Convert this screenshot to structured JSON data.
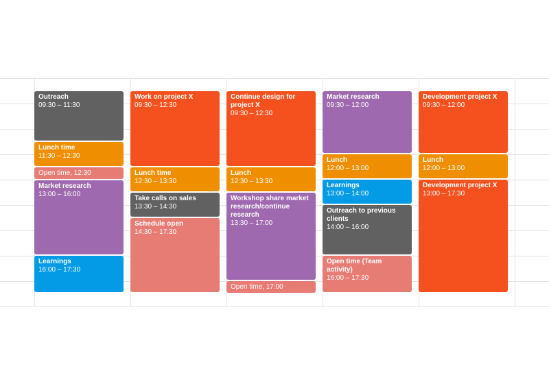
{
  "colors": {
    "gray": "#616161",
    "orange": "#f4511e",
    "amber": "#ef8f00",
    "salmon": "#e67c73",
    "purple": "#9e69af",
    "blue": "#039be5"
  },
  "days": [
    {
      "events": [
        {
          "title": "Outreach",
          "time": "09:30 – 11:30",
          "color": "gray"
        },
        {
          "title": "Lunch time",
          "time": "11:30 – 12:30",
          "color": "amber"
        },
        {
          "title": "Open time,",
          "time": "12:30",
          "color": "salmon"
        },
        {
          "title": "Market research",
          "time": "13:00 – 16:00",
          "color": "purple"
        },
        {
          "title": "Learnings",
          "time": "16:00 – 17:30",
          "color": "blue"
        }
      ]
    },
    {
      "events": [
        {
          "title": "Work on project X",
          "time": "09:30 – 12:30",
          "color": "orange"
        },
        {
          "title": "Lunch time",
          "time": "12:30 – 13:30",
          "color": "amber"
        },
        {
          "title": "Take calls on sales",
          "time": "13:30 – 14:30",
          "color": "gray"
        },
        {
          "title": "Schedule open",
          "time": "14:30 – 17:30",
          "color": "salmon"
        }
      ]
    },
    {
      "events": [
        {
          "title": "Continue design for project X",
          "time": "09:30 – 12:30",
          "color": "orange"
        },
        {
          "title": "Lunch",
          "time": "12:30 – 13:30",
          "color": "amber"
        },
        {
          "title": "Workshop share market research/continue research",
          "time": "13:30 – 17:00",
          "color": "purple"
        },
        {
          "title": "Open time,",
          "time": "17:00",
          "color": "salmon"
        }
      ]
    },
    {
      "events": [
        {
          "title": "Market research",
          "time": "09:30 – 12:00",
          "color": "purple"
        },
        {
          "title": "Lunch",
          "time": "12:00 – 13:00",
          "color": "amber"
        },
        {
          "title": "Learnings",
          "time": "13:00 – 14:00",
          "color": "blue"
        },
        {
          "title": "Outreach to previous clients",
          "time": "14:00 – 16:00",
          "color": "gray"
        },
        {
          "title": "Open time (Team activity)",
          "time": "16:00 – 17:30",
          "color": "salmon"
        }
      ]
    },
    {
      "events": [
        {
          "title": "Development project X",
          "time": "09:30 – 12:00",
          "color": "orange"
        },
        {
          "title": "Lunch",
          "time": "12:00 – 13:00",
          "color": "amber"
        },
        {
          "title": "Development project X",
          "time": "13:00 – 17:30",
          "color": "orange"
        }
      ]
    }
  ]
}
